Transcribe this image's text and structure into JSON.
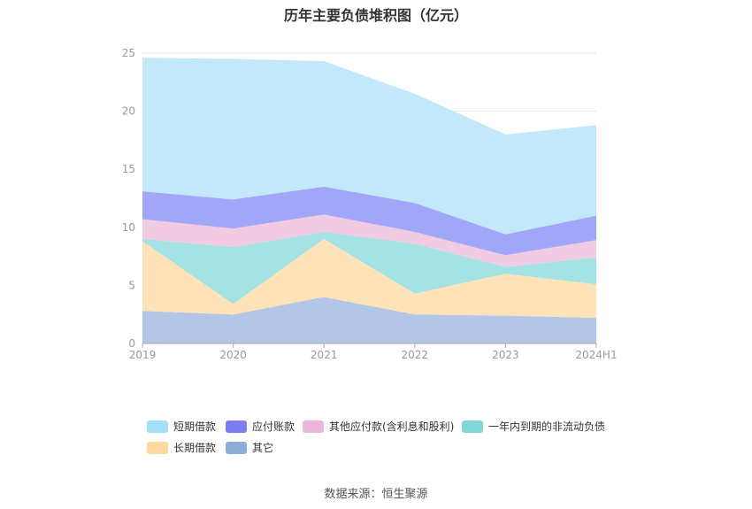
{
  "chart_data": {
    "type": "area",
    "stacked": true,
    "title": "历年主要负债堆积图（亿元）",
    "categories": [
      "2019",
      "2020",
      "2021",
      "2022",
      "2023",
      "2024H1"
    ],
    "ylim": [
      0,
      25
    ],
    "yticks": [
      0,
      5,
      10,
      15,
      20,
      25
    ],
    "grid": true,
    "legend_position": "bottom",
    "series": [
      {
        "name": "其它",
        "color": "#b3c6e7",
        "values": [
          2.8,
          2.5,
          4.0,
          2.5,
          2.4,
          2.2
        ]
      },
      {
        "name": "长期借款",
        "color": "#fde3b7",
        "values": [
          6.0,
          0.9,
          5.0,
          1.8,
          3.6,
          2.9
        ]
      },
      {
        "name": "一年内到期的非流动负债",
        "color": "#a5e2e3",
        "values": [
          0.2,
          4.9,
          0.6,
          4.3,
          0.6,
          2.3
        ]
      },
      {
        "name": "其他应付款(含利息和股利)",
        "color": "#f1cbe2",
        "values": [
          1.7,
          1.6,
          1.5,
          1.0,
          1.0,
          1.5
        ]
      },
      {
        "name": "应付账款",
        "color": "#a2a6f9",
        "values": [
          2.4,
          2.5,
          2.4,
          2.5,
          1.8,
          2.1
        ]
      },
      {
        "name": "短期借款",
        "color": "#c2e8fa",
        "values": [
          11.5,
          12.1,
          10.8,
          9.4,
          8.6,
          7.8
        ]
      }
    ],
    "legend": [
      {
        "name": "短期借款",
        "color": "#a4dff7"
      },
      {
        "name": "应付账款",
        "color": "#7b7ef0"
      },
      {
        "name": "其他应付款(含利息和股利)",
        "color": "#ebb8dc"
      },
      {
        "name": "一年内到期的非流动负债",
        "color": "#83d5d7"
      },
      {
        "name": "长期借款",
        "color": "#fcd99f"
      },
      {
        "name": "其它",
        "color": "#8fadd9"
      }
    ]
  },
  "source_text": "数据来源：恒生聚源"
}
